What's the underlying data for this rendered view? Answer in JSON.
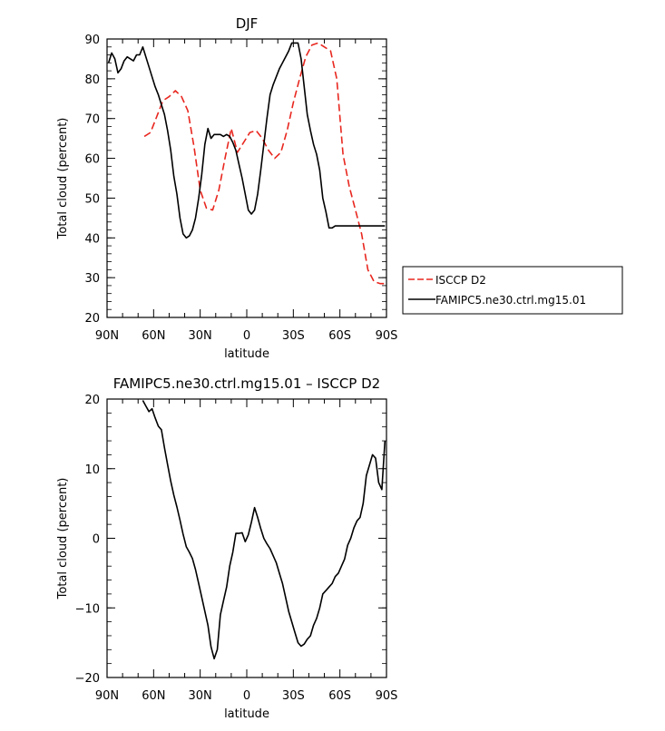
{
  "chart_data": [
    {
      "type": "line",
      "title": "DJF",
      "xlabel": "latitude",
      "ylabel": "Total cloud (percent)",
      "xlim": [
        90,
        -90
      ],
      "ylim": [
        20,
        90
      ],
      "xticks": [
        {
          "value": 90,
          "label": "90N"
        },
        {
          "value": 60,
          "label": "60N"
        },
        {
          "value": 30,
          "label": "30N"
        },
        {
          "value": 0,
          "label": "0"
        },
        {
          "value": -30,
          "label": "30S"
        },
        {
          "value": -60,
          "label": "60S"
        },
        {
          "value": -90,
          "label": "90S"
        }
      ],
      "yticks": [
        20,
        30,
        40,
        50,
        60,
        70,
        80,
        90
      ],
      "legend_position": "right",
      "series": [
        {
          "name": "ISCCP D2",
          "color": "#e8271f",
          "dash": "dashed",
          "x": [
            66,
            62,
            58,
            54,
            50,
            46,
            42,
            38,
            34,
            30,
            26,
            22,
            18,
            14,
            10,
            6,
            2,
            -2,
            -6,
            -10,
            -14,
            -18,
            -22,
            -26,
            -30,
            -34,
            -38,
            -42,
            -46,
            -50,
            -54,
            -58,
            -62,
            -66,
            -70,
            -74,
            -78,
            -82,
            -86,
            -89
          ],
          "y": [
            65.5,
            66.5,
            70.5,
            74.5,
            75.5,
            77.0,
            75.5,
            72.0,
            63.0,
            52.0,
            47.5,
            47.0,
            52.0,
            60.0,
            67.5,
            61.5,
            64.0,
            66.5,
            67.0,
            65.0,
            62.0,
            60.0,
            61.5,
            67.0,
            74.0,
            80.0,
            85.5,
            88.5,
            89.0,
            88.0,
            87.0,
            80.0,
            61.0,
            53.0,
            47.0,
            41.0,
            32.0,
            29.0,
            28.5,
            28.5
          ]
        },
        {
          "name": "FAMIPC5.ne30.ctrl.mg15.01",
          "color": "#000000",
          "dash": "solid",
          "x": [
            89,
            87,
            85,
            83,
            81,
            79,
            77,
            75,
            73,
            71,
            69,
            67,
            65,
            63,
            61,
            59,
            57,
            55,
            53,
            51,
            49,
            47,
            45,
            43,
            41,
            39,
            37,
            35,
            33,
            31,
            29,
            27,
            25,
            23,
            21,
            19,
            17,
            15,
            13,
            11,
            9,
            7,
            5,
            3,
            1,
            -1,
            -3,
            -5,
            -7,
            -9,
            -11,
            -13,
            -15,
            -17,
            -19,
            -21,
            -23,
            -25,
            -27,
            -29,
            -31,
            -33,
            -35,
            -37,
            -39,
            -41,
            -43,
            -45,
            -47,
            -49,
            -51,
            -53,
            -55,
            -57,
            -59,
            -61,
            -63,
            -65,
            -67,
            -69,
            -71,
            -73,
            -75,
            -77,
            -79,
            -81,
            -83,
            -85,
            -87,
            -89
          ],
          "y": [
            84.0,
            86.5,
            85.0,
            81.5,
            82.5,
            84.5,
            85.5,
            85.0,
            84.5,
            86.0,
            86.0,
            88.0,
            85.5,
            83.0,
            80.5,
            78.0,
            76.0,
            73.5,
            71.0,
            67.0,
            62.0,
            55.5,
            51.0,
            45.0,
            41.0,
            40.0,
            40.5,
            42.0,
            45.0,
            50.0,
            56.0,
            63.5,
            67.5,
            65.0,
            66.0,
            66.0,
            66.0,
            65.5,
            66.0,
            65.5,
            64.0,
            62.0,
            58.5,
            55.0,
            51.0,
            47.0,
            46.0,
            47.0,
            51.0,
            57.0,
            63.5,
            70.0,
            76.0,
            78.5,
            80.5,
            82.5,
            84.0,
            85.5,
            87.0,
            89.0,
            89.0,
            89.0,
            85.0,
            78.0,
            71.0,
            67.0,
            63.5,
            61.0,
            57.0,
            50.0,
            46.5,
            42.5,
            42.5,
            43.0,
            43.0,
            43.0,
            43.0,
            43.0,
            43.0,
            43.0,
            43.0,
            43.0,
            43.0,
            43.0,
            43.0,
            43.0,
            43.0,
            43.0,
            43.0,
            43.0
          ]
        }
      ]
    },
    {
      "type": "line",
      "title": "FAMIPC5.ne30.ctrl.mg15.01 – ISCCP D2",
      "xlabel": "latitude",
      "ylabel": "Total cloud (percent)",
      "xlim": [
        90,
        -90
      ],
      "ylim": [
        -20,
        20
      ],
      "xticks": [
        {
          "value": 90,
          "label": "90N"
        },
        {
          "value": 60,
          "label": "60N"
        },
        {
          "value": 30,
          "label": "30N"
        },
        {
          "value": 0,
          "label": "0"
        },
        {
          "value": -30,
          "label": "30S"
        },
        {
          "value": -60,
          "label": "60S"
        },
        {
          "value": -90,
          "label": "90S"
        }
      ],
      "yticks": [
        -20,
        -10,
        0,
        10,
        20
      ],
      "series": [
        {
          "name": "",
          "color": "#000000",
          "dash": "solid",
          "x": [
            67,
            65,
            63,
            61,
            59,
            57,
            55,
            53,
            51,
            49,
            47,
            45,
            43,
            41,
            39,
            37,
            35,
            33,
            31,
            29,
            27,
            25,
            23,
            21,
            19,
            17,
            15,
            13,
            11,
            9,
            7,
            5,
            3,
            1,
            -1,
            -3,
            -5,
            -7,
            -9,
            -11,
            -13,
            -15,
            -17,
            -19,
            -21,
            -23,
            -25,
            -27,
            -29,
            -31,
            -33,
            -35,
            -37,
            -39,
            -41,
            -43,
            -45,
            -47,
            -49,
            -51,
            -53,
            -55,
            -57,
            -59,
            -61,
            -63,
            -65,
            -67,
            -69,
            -71,
            -73,
            -75,
            -77,
            -79,
            -81,
            -83,
            -85,
            -87,
            -89
          ],
          "y": [
            19.8,
            19.0,
            18.2,
            18.6,
            17.3,
            16.1,
            15.6,
            13.0,
            10.6,
            8.2,
            6.2,
            4.5,
            2.6,
            0.6,
            -1.2,
            -2.0,
            -2.9,
            -4.5,
            -6.5,
            -8.5,
            -10.5,
            -12.5,
            -15.6,
            -17.3,
            -16.0,
            -11.0,
            -9.0,
            -7.0,
            -4.0,
            -2.0,
            0.7,
            0.7,
            0.8,
            -0.5,
            0.5,
            2.3,
            4.4,
            3.0,
            1.4,
            0.0,
            -0.8,
            -1.5,
            -2.5,
            -3.5,
            -5.0,
            -6.5,
            -8.5,
            -10.5,
            -12.0,
            -13.5,
            -15.0,
            -15.5,
            -15.2,
            -14.5,
            -14.0,
            -12.5,
            -11.5,
            -10.0,
            -8.0,
            -7.5,
            -7.0,
            -6.5,
            -5.5,
            -5.0,
            -4.0,
            -3.0,
            -1.0,
            0.0,
            1.5,
            2.5,
            3.0,
            5.0,
            9.0,
            10.5,
            12.0,
            11.5,
            8.0,
            7.0,
            14.0
          ]
        }
      ]
    }
  ]
}
